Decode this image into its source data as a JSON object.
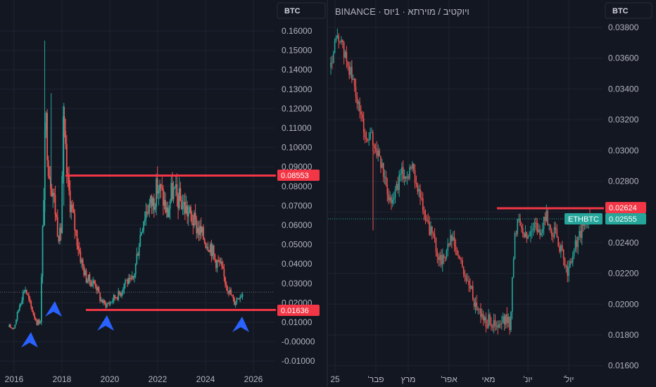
{
  "colors": {
    "background": "#131722",
    "up": "#26a69a",
    "down": "#ef5350",
    "grid": "#1f2330",
    "level_line": "#f23645",
    "arrow": "#2962ff",
    "last_price_line": "#26a69a"
  },
  "left_chart": {
    "currency_label": "BTC",
    "price_ticks": [
      "0.16000",
      "0.15000",
      "0.14000",
      "0.13000",
      "0.12000",
      "0.11000",
      "0.10000",
      "0.09000",
      "0.08000",
      "0.07000",
      "0.06000",
      "0.05000",
      "0.04000",
      "0.03000",
      "0.02000",
      "0.01000",
      "-0.00000",
      "-0.01000"
    ],
    "year_ticks": [
      "2016",
      "2018",
      "2020",
      "2022",
      "2024",
      "2026"
    ],
    "level_labels": {
      "resistance": "0.08553",
      "support": "0.01636"
    }
  },
  "right_chart": {
    "header": "BINANCE · ויוקטיב / מוירתא · 1יוס",
    "currency_label": "BTC",
    "price_ticks": [
      "0.03800",
      "0.03600",
      "0.03400",
      "0.03200",
      "0.03000",
      "0.02800",
      "0.02600",
      "0.02400",
      "0.02200",
      "0.02000",
      "0.01800",
      "0.01600"
    ],
    "month_ticks": [
      "25",
      "'פבר",
      "מרץ",
      "'אפר",
      "מאי",
      "'יונ",
      "'יול"
    ],
    "level_label": "0.02624",
    "last_price": {
      "symbol": "ETHBTC",
      "value": "0.02555"
    }
  },
  "chart_data": [
    {
      "type": "candlestick",
      "series": [
        {
          "name": "ETHBTC"
        }
      ],
      "x_range": [
        2015.8,
        2026.2
      ],
      "ylim": [
        -0.012,
        0.166
      ],
      "grid": true,
      "closes": [
        [
          2016.0,
          0.0075
        ],
        [
          2016.25,
          0.02
        ],
        [
          2016.45,
          0.028
        ],
        [
          2016.7,
          0.018
        ],
        [
          2016.95,
          0.01
        ],
        [
          2017.1,
          0.011
        ],
        [
          2017.2,
          0.06
        ],
        [
          2017.32,
          0.115
        ],
        [
          2017.45,
          0.09
        ],
        [
          2017.6,
          0.08
        ],
        [
          2017.8,
          0.06
        ],
        [
          2017.95,
          0.052
        ],
        [
          2018.05,
          0.11
        ],
        [
          2018.25,
          0.08
        ],
        [
          2018.45,
          0.065
        ],
        [
          2018.6,
          0.055
        ],
        [
          2018.8,
          0.042
        ],
        [
          2019.0,
          0.033
        ],
        [
          2019.2,
          0.031
        ],
        [
          2019.4,
          0.03
        ],
        [
          2019.6,
          0.022
        ],
        [
          2019.8,
          0.019
        ],
        [
          2020.0,
          0.02
        ],
        [
          2020.2,
          0.023
        ],
        [
          2020.45,
          0.025
        ],
        [
          2020.65,
          0.032
        ],
        [
          2020.85,
          0.03
        ],
        [
          2021.0,
          0.033
        ],
        [
          2021.2,
          0.05
        ],
        [
          2021.4,
          0.064
        ],
        [
          2021.6,
          0.07
        ],
        [
          2021.8,
          0.072
        ],
        [
          2022.0,
          0.08
        ],
        [
          2022.2,
          0.075
        ],
        [
          2022.4,
          0.065
        ],
        [
          2022.6,
          0.078
        ],
        [
          2022.8,
          0.074
        ],
        [
          2023.0,
          0.072
        ],
        [
          2023.2,
          0.068
        ],
        [
          2023.4,
          0.064
        ],
        [
          2023.6,
          0.06
        ],
        [
          2023.8,
          0.056
        ],
        [
          2024.0,
          0.052
        ],
        [
          2024.2,
          0.05
        ],
        [
          2024.4,
          0.042
        ],
        [
          2024.6,
          0.04
        ],
        [
          2024.8,
          0.032
        ],
        [
          2025.0,
          0.026
        ],
        [
          2025.2,
          0.02
        ],
        [
          2025.4,
          0.024
        ],
        [
          2025.55,
          0.025
        ]
      ],
      "levels": [
        0.08553,
        0.01636
      ],
      "last_value": 0.0255
    },
    {
      "type": "candlestick",
      "series": [
        {
          "name": "ETHBTC"
        }
      ],
      "x_labels": [
        "25",
        "'פבר",
        "מרץ",
        "'אפר",
        "מאי",
        "'יונ",
        "'יול"
      ],
      "ylim": [
        0.0157,
        0.0386
      ],
      "grid": true,
      "closes": [
        0.0354,
        0.0368,
        0.0374,
        0.0366,
        0.0358,
        0.035,
        0.034,
        0.0328,
        0.0318,
        0.0305,
        0.031,
        0.0302,
        0.0298,
        0.0286,
        0.0276,
        0.0268,
        0.0272,
        0.028,
        0.0286,
        0.0282,
        0.029,
        0.0284,
        0.0275,
        0.0262,
        0.0252,
        0.0248,
        0.024,
        0.0232,
        0.0228,
        0.0236,
        0.0242,
        0.0238,
        0.023,
        0.0224,
        0.0216,
        0.021,
        0.0202,
        0.0198,
        0.0192,
        0.0188,
        0.019,
        0.0186,
        0.0184,
        0.0188,
        0.019,
        0.0187,
        0.024,
        0.0258,
        0.025,
        0.0242,
        0.0246,
        0.0254,
        0.0246,
        0.0248,
        0.0258,
        0.025,
        0.0246,
        0.0242,
        0.0232,
        0.0222,
        0.0224,
        0.0236,
        0.0242,
        0.0248,
        0.0253,
        0.0255
      ],
      "levels": [
        0.02624
      ],
      "last_value": 0.02555
    }
  ]
}
